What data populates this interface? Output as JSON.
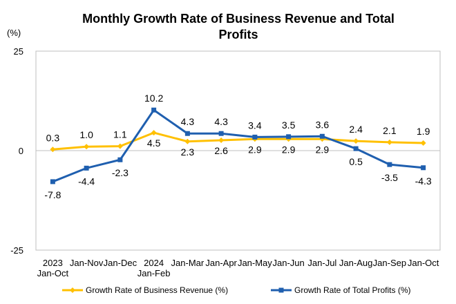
{
  "chart_data": {
    "type": "line",
    "title_line1": "Monthly Growth Rate of Business Revenue and Total",
    "title_line2": "Profits",
    "ylabel": "(%)",
    "ylim": [
      -25,
      25
    ],
    "yticks": [
      "25",
      "0",
      "-25"
    ],
    "yticks_values": [
      25,
      0,
      -25
    ],
    "categories": [
      [
        "2023",
        "Jan-Oct"
      ],
      [
        "Jan-Nov"
      ],
      [
        "Jan-Dec"
      ],
      [
        "2024",
        "Jan-Feb"
      ],
      [
        "Jan-Mar"
      ],
      [
        "Jan-Apr"
      ],
      [
        "Jan-May"
      ],
      [
        "Jan-Jun"
      ],
      [
        "Jan-Jul"
      ],
      [
        "Jan-Aug"
      ],
      [
        "Jan-Sep"
      ],
      [
        "Jan-Oct"
      ]
    ],
    "series": [
      {
        "name": "Growth Rate of Business Revenue (%)",
        "color": "#FFC000",
        "marker": "diamond",
        "values": [
          0.3,
          1.0,
          1.1,
          4.5,
          2.3,
          2.6,
          2.9,
          2.9,
          2.9,
          2.4,
          2.1,
          1.9
        ],
        "labels": [
          "0.3",
          "1.0",
          "1.1",
          "4.5",
          "2.3",
          "2.6",
          "2.9",
          "2.9",
          "2.9",
          "2.4",
          "2.1",
          "1.9"
        ]
      },
      {
        "name": "Growth Rate of Total Profits (%)",
        "color": "#1F5FAF",
        "marker": "square",
        "values": [
          -7.8,
          -4.4,
          -2.3,
          10.2,
          4.3,
          4.3,
          3.4,
          3.5,
          3.6,
          0.5,
          -3.5,
          -4.3
        ],
        "labels": [
          "-7.8",
          "-4.4",
          "-2.3",
          "10.2",
          "4.3",
          "4.3",
          "3.4",
          "3.5",
          "3.6",
          "0.5",
          "-3.5",
          "-4.3"
        ]
      }
    ],
    "legend_position": "bottom"
  }
}
